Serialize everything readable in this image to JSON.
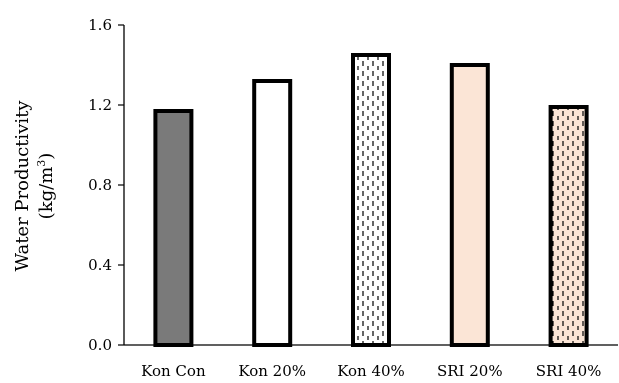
{
  "chart_data": {
    "type": "bar",
    "title": "",
    "xlabel": "",
    "ylabel": "Water Productivity",
    "ylabel_unit_prefix": "(kg/m",
    "ylabel_unit_sup": "3",
    "ylabel_unit_suffix": ")",
    "ylim": [
      0,
      1.6
    ],
    "yticks": [
      "0.0",
      "0.4",
      "0.8",
      "1.2",
      "1.6"
    ],
    "grid": false,
    "categories": [
      "Kon Con",
      "Kon 20%",
      "Kon 40%",
      "SRI 20%",
      "SRI 40%"
    ],
    "values": [
      1.17,
      1.32,
      1.45,
      1.4,
      1.19
    ],
    "bar_styles": [
      {
        "fill": "#7a7a7a",
        "pattern": "none"
      },
      {
        "fill": "#ffffff",
        "pattern": "none"
      },
      {
        "fill": "#ffffff",
        "pattern": "vertical-dashes"
      },
      {
        "fill": "#fbe5d6",
        "pattern": "none"
      },
      {
        "fill": "#fbe5d6",
        "pattern": "vertical-dashes"
      }
    ]
  }
}
